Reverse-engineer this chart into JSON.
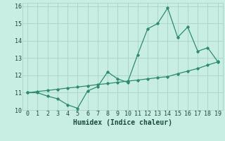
{
  "x": [
    0,
    1,
    2,
    3,
    4,
    5,
    6,
    7,
    8,
    9,
    10,
    11,
    12,
    13,
    14,
    15,
    16,
    17,
    18,
    19
  ],
  "y_main": [
    11.0,
    11.0,
    10.8,
    10.65,
    10.3,
    10.1,
    11.1,
    11.35,
    12.2,
    11.8,
    11.6,
    13.2,
    14.7,
    15.0,
    15.9,
    14.2,
    14.8,
    13.4,
    13.6,
    12.8
  ],
  "y_trend": [
    11.0,
    11.07,
    11.13,
    11.2,
    11.27,
    11.33,
    11.4,
    11.47,
    11.53,
    11.6,
    11.67,
    11.73,
    11.8,
    11.87,
    11.93,
    12.1,
    12.25,
    12.4,
    12.6,
    12.78
  ],
  "color": "#2e8b72",
  "bg_color": "#c8ede3",
  "grid_color": "#a8d5c5",
  "xlabel": "Humidex (Indice chaleur)",
  "ylim": [
    10.0,
    16.2
  ],
  "xlim": [
    -0.5,
    19.5
  ],
  "yticks": [
    10,
    11,
    12,
    13,
    14,
    15,
    16
  ],
  "xticks": [
    0,
    1,
    2,
    3,
    4,
    5,
    6,
    7,
    8,
    9,
    10,
    11,
    12,
    13,
    14,
    15,
    16,
    17,
    18,
    19
  ],
  "tick_fontsize": 6,
  "xlabel_fontsize": 7
}
